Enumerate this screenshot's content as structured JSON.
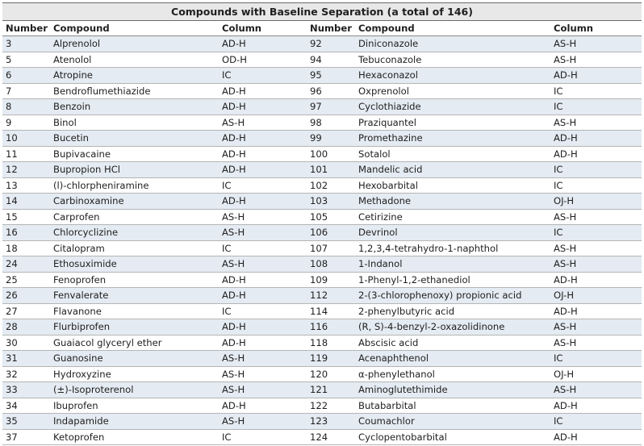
{
  "table": {
    "title": "Compounds with Baseline Separation (a total of 146)",
    "headers": [
      "Number",
      "Compound",
      "Column",
      "Number",
      "Compound",
      "Column"
    ],
    "rows": [
      [
        "3",
        "Alprenolol",
        "AD-H",
        "92",
        "Diniconazole",
        "AS-H"
      ],
      [
        "5",
        "Atenolol",
        "OD-H",
        "94",
        "Tebuconazole",
        "AS-H"
      ],
      [
        "6",
        "Atropine",
        "IC",
        "95",
        "Hexaconazol",
        "AD-H"
      ],
      [
        "7",
        "Bendroflumethiazide",
        "AD-H",
        "96",
        "Oxprenolol",
        "IC"
      ],
      [
        "8",
        "Benzoin",
        "AD-H",
        "97",
        "Cyclothiazide",
        "IC"
      ],
      [
        "9",
        "Binol",
        "AS-H",
        "98",
        "Praziquantel",
        "AS-H"
      ],
      [
        "10",
        "Bucetin",
        "AD-H",
        "99",
        "Promethazine",
        "AD-H"
      ],
      [
        "11",
        "Bupivacaine",
        "AD-H",
        "100",
        "Sotalol",
        "AD-H"
      ],
      [
        "12",
        "Bupropion HCl",
        "AD-H",
        "101",
        "Mandelic acid",
        "IC"
      ],
      [
        "13",
        "(l)-chlorpheniramine",
        "IC",
        "102",
        "Hexobarbital",
        "IC"
      ],
      [
        "14",
        "Carbinoxamine",
        "AD-H",
        "103",
        "Methadone",
        "OJ-H"
      ],
      [
        "15",
        "Carprofen",
        "AS-H",
        "105",
        "Cetirizine",
        "AS-H"
      ],
      [
        "16",
        "Chlorcyclizine",
        "AS-H",
        "106",
        "Devrinol",
        "IC"
      ],
      [
        "18",
        "Citalopram",
        "IC",
        "107",
        "1,2,3,4-tetrahydro-1-naphthol",
        "AS-H"
      ],
      [
        "24",
        "Ethosuximide",
        "AS-H",
        "108",
        "1-Indanol",
        "AS-H"
      ],
      [
        "25",
        "Fenoprofen",
        "AD-H",
        "109",
        "1-Phenyl-1,2-ethanediol",
        "AD-H"
      ],
      [
        "26",
        "Fenvalerate",
        "AD-H",
        "112",
        "2-(3-chlorophenoxy) propionic acid",
        "OJ-H"
      ],
      [
        "27",
        "Flavanone",
        "IC",
        "114",
        "2-phenylbutyric acid",
        "AD-H"
      ],
      [
        "28",
        "Flurbiprofen",
        "AD-H",
        "116",
        "(R, S)-4-benzyl-2-oxazolidinone",
        "AS-H"
      ],
      [
        "30",
        "Guaiacol glyceryl ether",
        "AD-H",
        "118",
        "Abscisic acid",
        "AS-H"
      ],
      [
        "31",
        "Guanosine",
        "AS-H",
        "119",
        "Acenaphthenol",
        "IC"
      ],
      [
        "32",
        "Hydroxyzine",
        "AS-H",
        "120",
        "α-phenylethanol",
        "OJ-H"
      ],
      [
        "33",
        "(±)-Isoproterenol",
        "AS-H",
        "121",
        "Aminoglutethimide",
        "AS-H"
      ],
      [
        "34",
        "Ibuprofen",
        "AD-H",
        "122",
        "Butabarbital",
        "AD-H"
      ],
      [
        "35",
        "Indapamide",
        "AS-H",
        "123",
        "Coumachlor",
        "IC"
      ],
      [
        "37",
        "Ketoprofen",
        "IC",
        "124",
        "Cyclopentobarbital",
        "AD-H"
      ]
    ]
  }
}
